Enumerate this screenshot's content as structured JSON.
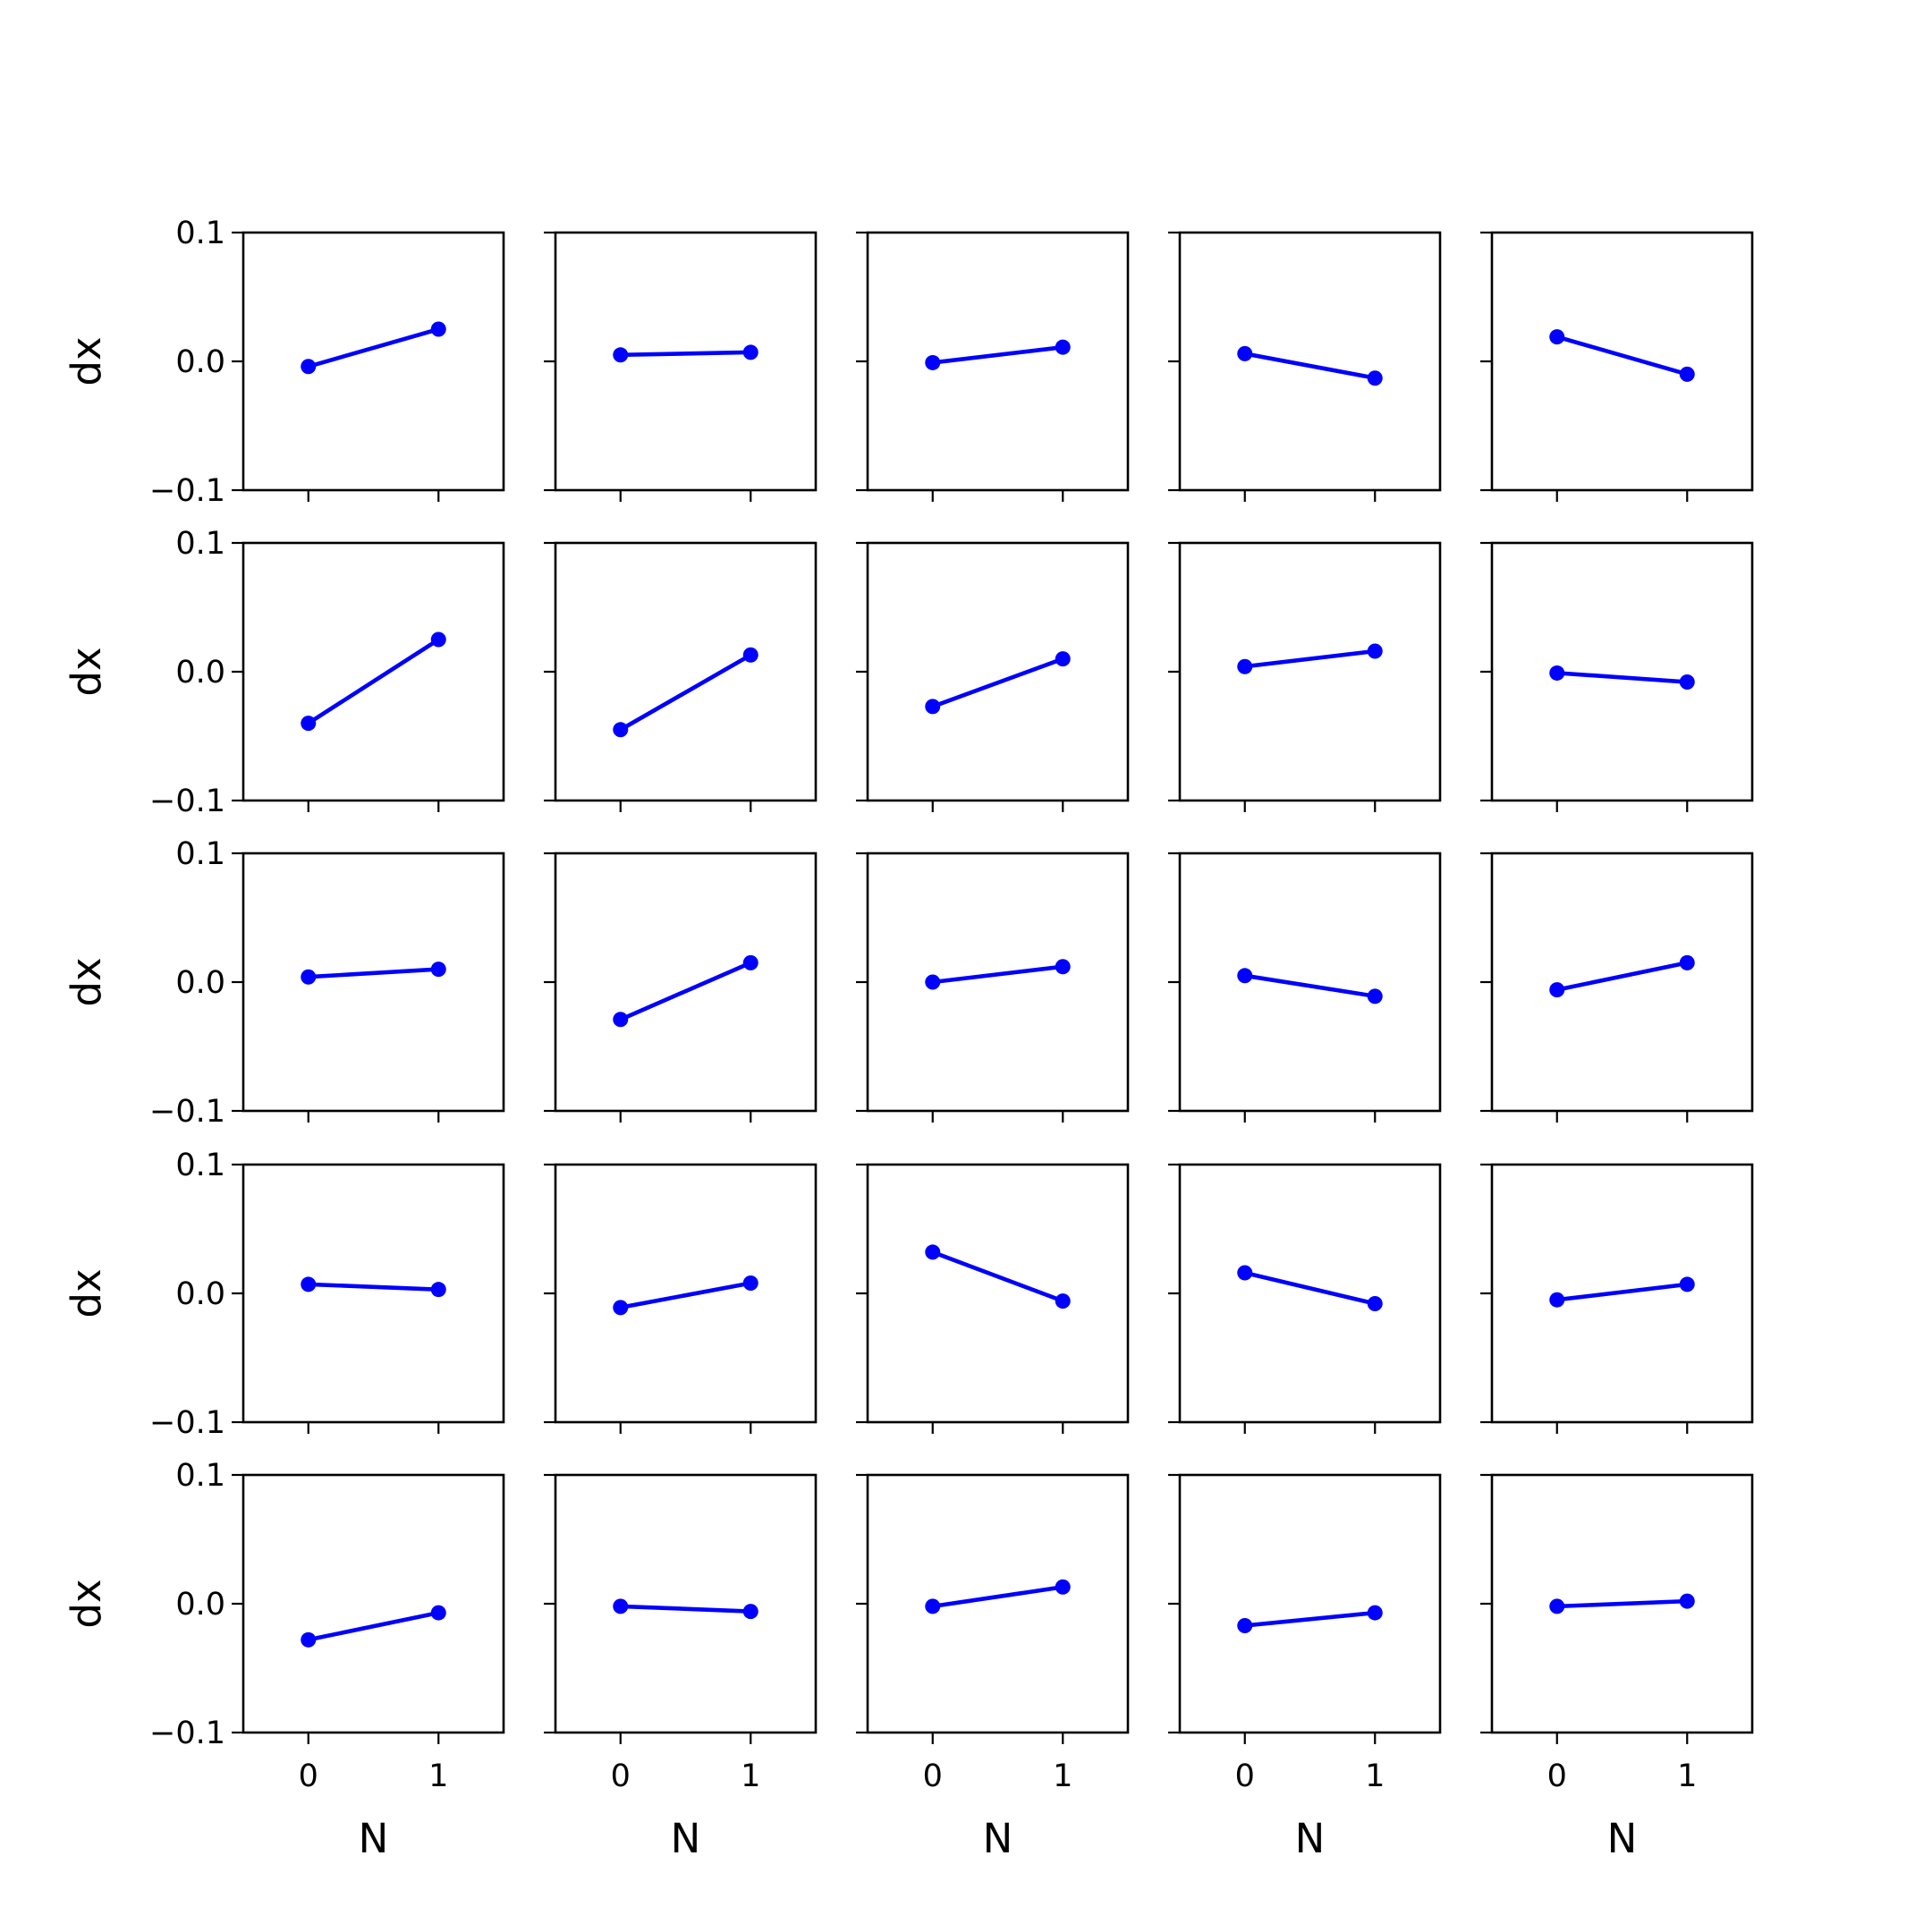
{
  "chart_data": {
    "type": "line",
    "layout": {
      "rows": 5,
      "cols": 5
    },
    "series_color": "#0000ff",
    "marker": "circle",
    "xlabel": "N",
    "ylabel": "dx",
    "x": [
      0,
      1
    ],
    "xlim": [
      -0.5,
      1.5
    ],
    "ylim": [
      -0.1,
      0.1
    ],
    "x_ticks": [
      0,
      1
    ],
    "x_tick_labels": [
      "0",
      "1"
    ],
    "y_ticks": [
      0.1,
      0.0,
      -0.1
    ],
    "y_tick_labels": [
      "0.1",
      "0.0",
      "−0.1"
    ],
    "grid": false,
    "panels": [
      [
        [
          -0.004,
          0.025
        ],
        [
          0.005,
          0.007
        ],
        [
          -0.001,
          0.011
        ],
        [
          0.006,
          -0.013
        ],
        [
          0.019,
          -0.01
        ]
      ],
      [
        [
          -0.04,
          0.025
        ],
        [
          -0.045,
          0.013
        ],
        [
          -0.027,
          0.01
        ],
        [
          0.004,
          0.016
        ],
        [
          -0.001,
          -0.008
        ]
      ],
      [
        [
          0.004,
          0.01
        ],
        [
          -0.029,
          0.015
        ],
        [
          0.0,
          0.012
        ],
        [
          0.005,
          -0.011
        ],
        [
          -0.006,
          0.015
        ]
      ],
      [
        [
          0.007,
          0.003
        ],
        [
          -0.011,
          0.008
        ],
        [
          0.032,
          -0.006
        ],
        [
          0.016,
          -0.008
        ],
        [
          -0.005,
          0.007
        ]
      ],
      [
        [
          -0.028,
          -0.007
        ],
        [
          -0.002,
          -0.006
        ],
        [
          -0.002,
          0.013
        ],
        [
          -0.017,
          -0.007
        ],
        [
          -0.002,
          0.002
        ]
      ]
    ]
  }
}
